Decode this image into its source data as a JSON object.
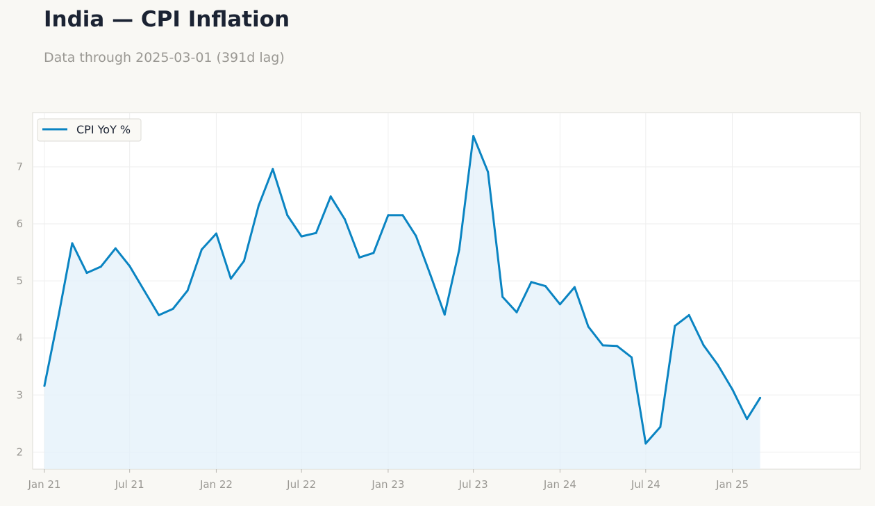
{
  "title": "India — CPI Inflation",
  "subtitle": "Data through 2025-03-01 (391d lag)",
  "colors": {
    "line": "#0a84c2",
    "fill": "#e3f0f9",
    "background": "#f9f8f4",
    "plot_background": "#ffffff",
    "grid": "#eeeeee",
    "text": "#1b2333",
    "muted": "#9a9893"
  },
  "chart_data": {
    "type": "area",
    "title": "India — CPI Inflation",
    "subtitle": "Data through 2025-03-01 (391d lag)",
    "xlabel": "",
    "ylabel": "",
    "legend_position": "top-left",
    "grid": true,
    "ylim": [
      1.7,
      7.95
    ],
    "xlim": [
      "2020-12-07",
      "2025-09-30"
    ],
    "y_ticks": [
      2,
      3,
      4,
      5,
      6,
      7
    ],
    "x_ticks": [
      {
        "date": "2021-01-01",
        "label": "Jan 21"
      },
      {
        "date": "2021-07-01",
        "label": "Jul 21"
      },
      {
        "date": "2022-01-01",
        "label": "Jan 22"
      },
      {
        "date": "2022-07-01",
        "label": "Jul 22"
      },
      {
        "date": "2023-01-01",
        "label": "Jan 23"
      },
      {
        "date": "2023-07-01",
        "label": "Jul 23"
      },
      {
        "date": "2024-01-01",
        "label": "Jan 24"
      },
      {
        "date": "2024-07-01",
        "label": "Jul 24"
      },
      {
        "date": "2025-01-01",
        "label": "Jan 25"
      }
    ],
    "series": [
      {
        "name": "CPI YoY %",
        "x": [
          "2021-01-01",
          "2021-02-01",
          "2021-03-01",
          "2021-04-01",
          "2021-05-01",
          "2021-06-01",
          "2021-07-01",
          "2021-08-01",
          "2021-09-01",
          "2021-10-01",
          "2021-11-01",
          "2021-12-01",
          "2022-01-01",
          "2022-02-01",
          "2022-03-01",
          "2022-04-01",
          "2022-05-01",
          "2022-06-01",
          "2022-07-01",
          "2022-08-01",
          "2022-09-01",
          "2022-10-01",
          "2022-11-01",
          "2022-12-01",
          "2023-01-01",
          "2023-02-01",
          "2023-03-01",
          "2023-04-01",
          "2023-05-01",
          "2023-06-01",
          "2023-07-01",
          "2023-08-01",
          "2023-09-01",
          "2023-10-01",
          "2023-11-01",
          "2023-12-01",
          "2024-01-01",
          "2024-02-01",
          "2024-03-01",
          "2024-04-01",
          "2024-05-01",
          "2024-06-01",
          "2024-07-01",
          "2024-08-01",
          "2024-09-01",
          "2024-10-01",
          "2024-11-01",
          "2024-12-01",
          "2025-01-01",
          "2025-02-01",
          "2025-03-01"
        ],
        "y": [
          3.16,
          4.43,
          5.66,
          5.14,
          5.25,
          5.57,
          5.26,
          4.83,
          4.4,
          4.51,
          4.83,
          5.55,
          5.83,
          5.04,
          5.35,
          6.32,
          6.96,
          6.15,
          5.78,
          5.84,
          6.48,
          6.08,
          5.41,
          5.49,
          6.15,
          6.15,
          5.79,
          5.1,
          4.41,
          5.55,
          7.54,
          6.91,
          4.72,
          4.45,
          4.98,
          4.91,
          4.59,
          4.89,
          4.2,
          3.87,
          3.86,
          3.66,
          2.15,
          2.44,
          4.21,
          4.4,
          3.87,
          3.53,
          3.1,
          2.58,
          2.95
        ]
      }
    ]
  }
}
